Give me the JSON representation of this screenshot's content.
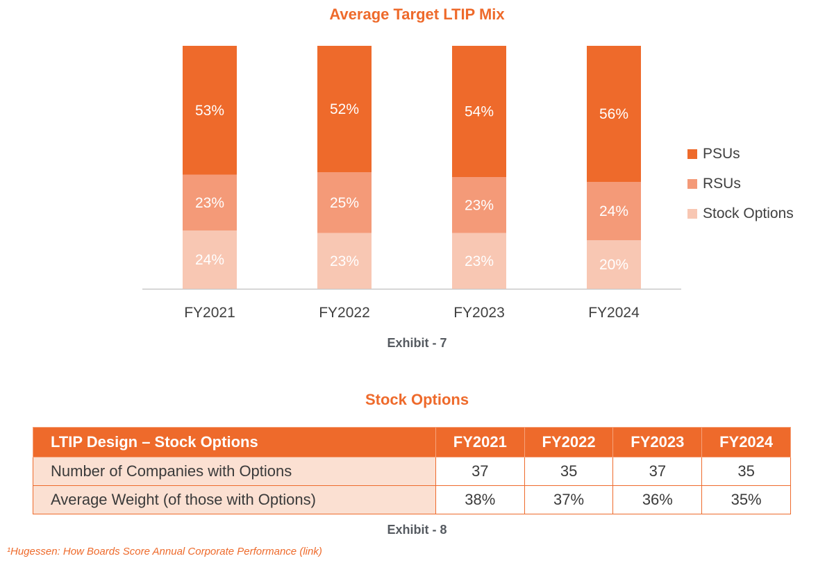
{
  "chart_data": {
    "type": "bar",
    "stacked": true,
    "title": "Average Target LTIP Mix",
    "categories": [
      "FY2021",
      "FY2022",
      "FY2023",
      "FY2024"
    ],
    "series": [
      {
        "name": "Stock Options",
        "values": [
          24,
          23,
          23,
          20
        ],
        "labels": [
          "24%",
          "23%",
          "23%",
          "20%"
        ],
        "color": "#f8c7b3"
      },
      {
        "name": "RSUs",
        "values": [
          23,
          25,
          23,
          24
        ],
        "labels": [
          "23%",
          "25%",
          "23%",
          "24%"
        ],
        "color": "#f49a78"
      },
      {
        "name": "PSUs",
        "values": [
          53,
          52,
          54,
          56
        ],
        "labels": [
          "53%",
          "52%",
          "54%",
          "56%"
        ],
        "color": "#ee6a2b"
      }
    ],
    "legend_order": [
      "PSUs",
      "RSUs",
      "Stock Options"
    ],
    "legend_position": "right",
    "ylim": [
      0,
      100
    ],
    "xlabel": "",
    "ylabel": ""
  },
  "exhibit_7": "Exhibit - 7",
  "section_title": "Stock Options",
  "table": {
    "header": [
      "LTIP Design – Stock Options",
      "FY2021",
      "FY2022",
      "FY2023",
      "FY2024"
    ],
    "rows": [
      {
        "label": "Number of Companies with Options",
        "values": [
          "37",
          "35",
          "37",
          "35"
        ]
      },
      {
        "label": "Average Weight (of those with Options)",
        "values": [
          "38%",
          "37%",
          "36%",
          "35%"
        ]
      }
    ]
  },
  "exhibit_8": "Exhibit - 8",
  "footnote": "¹Hugessen: How Boards Score Annual Corporate Performance (link)",
  "colors": {
    "accent": "#ee6a2b",
    "rsu": "#f49a78",
    "options": "#f8c7b3",
    "row_bg": "#fbe0d2"
  }
}
